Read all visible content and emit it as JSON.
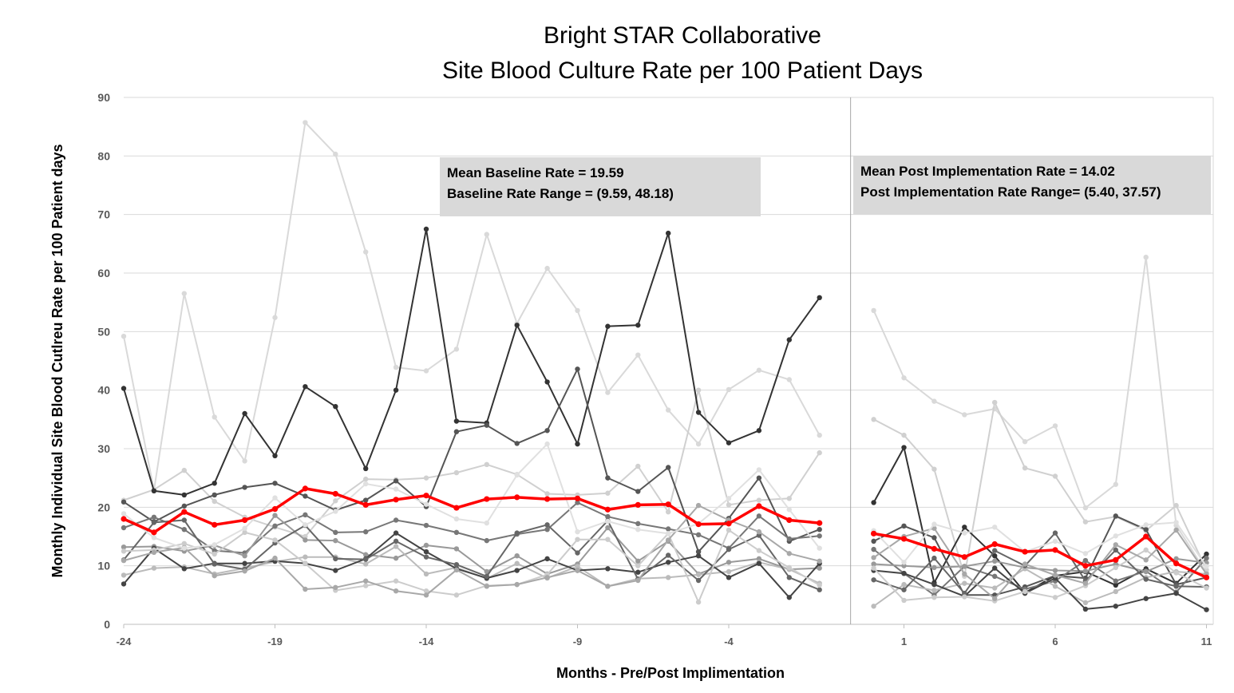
{
  "chart_data": {
    "type": "line",
    "title": "Bright STAR Collaborative",
    "subtitle": "Site Blood Culture Rate per 100 Patient Days",
    "xlabel": "Months - Pre/Post Implimentation",
    "ylabel": "Monthly Individual Site Blood Cutlreu Rate per 100 Patient days",
    "ylim": [
      0,
      90
    ],
    "y_ticks": [
      0,
      10,
      20,
      30,
      40,
      50,
      60,
      70,
      80,
      90
    ],
    "x_ticks": [
      -24,
      -19,
      -14,
      -9,
      -4,
      1,
      6,
      11
    ],
    "grid": true,
    "phase_divider_between": [
      -1,
      0
    ],
    "annotations": [
      {
        "lines": [
          "Mean Baseline Rate = 19.59",
          "Baseline Rate Range = (9.59, 48.18)"
        ]
      },
      {
        "lines": [
          "Mean Post Implementation Rate = 14.02",
          "Post Implementation Rate Range= (5.40, 37.57)"
        ]
      }
    ],
    "pre_months": [
      -24,
      -23,
      -22,
      -21,
      -20,
      -19,
      -18,
      -17,
      -16,
      -15,
      -14,
      -13,
      -12,
      -11,
      -10,
      -9,
      -8,
      -7,
      -6,
      -5,
      -4,
      -3,
      -2,
      -1
    ],
    "post_months": [
      0,
      1,
      2,
      3,
      4,
      5,
      6,
      7,
      8,
      9,
      10,
      11
    ],
    "mean_series": {
      "color": "#ff0000",
      "pre": [
        18.0,
        15.7,
        19.2,
        17.0,
        17.8,
        19.7,
        23.2,
        22.3,
        20.4,
        21.3,
        22.0,
        19.9,
        21.4,
        21.7,
        21.4,
        21.5,
        19.6,
        20.4,
        20.5,
        17.1,
        17.2,
        20.2,
        17.8,
        17.3
      ],
      "post": [
        15.5,
        14.6,
        12.9,
        11.5,
        13.7,
        12.4,
        12.7,
        10.0,
        11.0,
        15.0,
        10.4,
        8.0
      ]
    },
    "series": [
      {
        "color": "#d9d9d9",
        "pre": [
          49.2,
          22.9,
          56.5,
          35.4,
          27.9,
          52.4,
          85.7,
          80.3,
          63.6,
          43.9,
          43.3,
          47.0,
          66.6,
          51.4,
          60.8,
          53.6,
          39.6,
          46.0,
          36.6,
          30.8,
          40.1,
          43.4,
          41.8,
          32.3
        ],
        "post": [
          53.6,
          42.1,
          38.1,
          35.8,
          36.8,
          31.2,
          33.9,
          19.9,
          23.9,
          62.7,
          16.9,
          8.8
        ]
      },
      {
        "color": "#d0d0d0",
        "pre": [
          21.2,
          23.0,
          26.3,
          21.0,
          18.3,
          16.6,
          15.0,
          21.1,
          24.8,
          24.7,
          25.0,
          25.9,
          27.3,
          25.6,
          22.3,
          22.1,
          22.4,
          27.0,
          19.2,
          40.0,
          20.4,
          21.2,
          21.5,
          29.3
        ],
        "post": [
          35.0,
          32.3,
          26.5,
          8.2,
          37.9,
          26.7,
          25.3,
          17.5,
          18.4,
          16.0,
          20.3,
          9.3
        ]
      },
      {
        "color": "#333333",
        "pre": [
          40.3,
          22.8,
          22.1,
          24.1,
          36.0,
          28.8,
          40.6,
          37.2,
          26.6,
          40.0,
          67.5,
          34.7,
          34.4,
          51.1,
          41.4,
          30.8,
          50.9,
          51.1,
          66.8,
          36.2,
          31.0,
          33.1,
          48.6,
          55.8
        ],
        "post": [
          20.8,
          30.2,
          7.1,
          16.6,
          11.7,
          5.4,
          8.3,
          9.0,
          6.7,
          9.5,
          7.0,
          12.0
        ]
      },
      {
        "color": "#555555",
        "pre": [
          20.9,
          17.5,
          20.2,
          22.1,
          23.4,
          24.1,
          21.9,
          19.5,
          21.2,
          24.5,
          20.1,
          32.9,
          34.0,
          30.9,
          33.1,
          43.6,
          25.0,
          22.7,
          26.8,
          12.4,
          18.1,
          25.0,
          14.2,
          16.2
        ],
        "post": [
          14.2,
          16.8,
          14.8,
          5.0,
          5.0,
          6.4,
          8.3,
          7.9,
          18.5,
          16.2,
          6.8,
          8.0
        ]
      },
      {
        "color": "#777777",
        "pre": [
          16.5,
          18.3,
          16.2,
          12.6,
          12.2,
          16.8,
          18.7,
          15.7,
          15.8,
          17.8,
          16.9,
          15.7,
          14.3,
          15.4,
          16.2,
          20.8,
          18.4,
          17.2,
          16.3,
          15.3,
          13.0,
          18.5,
          14.6,
          15.1
        ],
        "post": [
          12.8,
          8.7,
          5.0,
          9.9,
          8.2,
          6.0,
          7.4,
          10.9,
          7.4,
          9.1,
          5.5,
          11.3
        ]
      },
      {
        "color": "#999999",
        "pre": [
          13.2,
          13.3,
          12.5,
          13.5,
          11.7,
          18.6,
          14.4,
          14.3,
          11.9,
          11.3,
          13.5,
          12.9,
          9.0,
          11.7,
          8.6,
          10.3,
          16.5,
          10.8,
          14.2,
          8.6,
          10.6,
          11.2,
          9.4,
          9.6
        ],
        "post": [
          10.3,
          10.0,
          9.7,
          9.9,
          10.8,
          9.7,
          9.2,
          9.1,
          10.3,
          9.0,
          11.2,
          10.5
        ]
      },
      {
        "color": "#bbbbbb",
        "pre": [
          8.4,
          9.6,
          9.8,
          8.6,
          9.6,
          10.7,
          11.5,
          11.5,
          10.3,
          13.3,
          8.6,
          9.7,
          7.8,
          10.4,
          7.9,
          9.9,
          6.5,
          7.8,
          8.0,
          8.5,
          9.0,
          10.6,
          9.4,
          7.0
        ],
        "post": [
          3.1,
          6.8,
          5.8,
          7.0,
          6.2,
          9.5,
          6.5,
          3.7,
          5.6,
          8.0,
          9.0,
          8.6
        ]
      },
      {
        "color": "#444444",
        "pre": [
          6.9,
          13.0,
          9.5,
          10.4,
          10.4,
          10.8,
          10.4,
          9.2,
          11.2,
          15.6,
          12.4,
          9.5,
          7.9,
          9.2,
          11.2,
          9.2,
          9.5,
          8.9,
          10.6,
          11.7,
          8.0,
          10.4,
          4.6,
          10.4
        ],
        "post": [
          9.2,
          8.7,
          6.8,
          4.8,
          9.6,
          5.3,
          7.9,
          2.6,
          3.1,
          4.4,
          5.3,
          2.5
        ]
      },
      {
        "color": "#666666",
        "pre": [
          11.0,
          17.4,
          17.8,
          10.3,
          9.4,
          13.9,
          16.9,
          11.2,
          11.1,
          14.2,
          11.5,
          10.2,
          8.2,
          15.6,
          17.0,
          12.2,
          17.7,
          7.7,
          11.8,
          7.5,
          12.8,
          15.2,
          8.0,
          5.9
        ],
        "post": [
          7.6,
          5.9,
          11.3,
          5.3,
          12.6,
          10.0,
          15.6,
          7.4,
          12.7,
          7.7,
          6.5,
          6.4
        ]
      },
      {
        "color": "#cccccc",
        "pre": [
          12.5,
          12.7,
          13.8,
          12.0,
          15.7,
          14.4,
          10.4,
          5.8,
          6.6,
          7.4,
          5.7,
          5.0,
          6.6,
          6.8,
          8.5,
          14.5,
          14.5,
          10.0,
          15.5,
          3.8,
          16.1,
          12.6,
          9.7,
          6.7
        ],
        "post": [
          9.6,
          4.1,
          4.6,
          4.7,
          4.0,
          5.6,
          4.6,
          6.6,
          9.7,
          12.7,
          8.8,
          6.2
        ]
      },
      {
        "color": "#a8a8a8",
        "pre": [
          10.9,
          12.3,
          13.1,
          8.3,
          9.1,
          11.3,
          6.0,
          6.3,
          7.4,
          5.7,
          5.0,
          9.3,
          6.5,
          6.8,
          8.0,
          9.2,
          6.5,
          7.5,
          14.4,
          20.3,
          17.8,
          15.8,
          12.1,
          10.8
        ],
        "post": [
          11.4,
          15.0,
          16.4,
          8.6,
          4.4,
          10.3,
          8.4,
          7.0,
          13.6,
          11.0,
          16.1,
          8.6
        ]
      },
      {
        "color": "#e0e0e0",
        "pre": [
          18.9,
          14.8,
          13.0,
          13.6,
          16.4,
          21.6,
          17.0,
          19.3,
          24.0,
          23.1,
          20.5,
          18.0,
          17.3,
          25.5,
          30.8,
          15.8,
          17.6,
          16.2,
          15.5,
          17.2,
          21.5,
          26.4,
          19.6,
          13.0
        ],
        "post": [
          16.0,
          10.6,
          17.1,
          15.6,
          16.6,
          12.4,
          14.2,
          12.1,
          15.1,
          17.0,
          17.4,
          9.9
        ]
      }
    ]
  }
}
